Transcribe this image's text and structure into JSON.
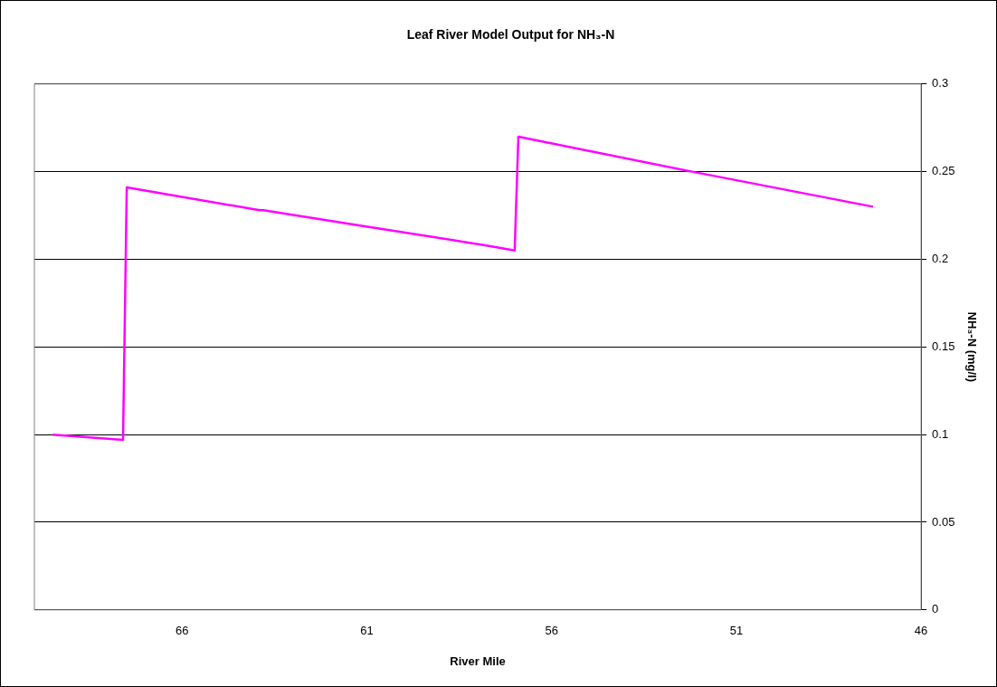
{
  "chart_data": {
    "type": "line",
    "title": "Leaf River Model Output for NH₃-N",
    "xlabel": "River Mile",
    "ylabel": "NH₃-N (mg/l)",
    "xlim": [
      70,
      46
    ],
    "xticks": [
      66,
      61,
      56,
      51,
      46
    ],
    "ylim": [
      0,
      0.3
    ],
    "yticks": [
      0,
      0.05,
      0.1,
      0.15,
      0.2,
      0.25,
      0.3
    ],
    "grid": "y",
    "legend": false,
    "marker": "none",
    "line_style": "solid",
    "series": [
      {
        "color": "#ff00ff",
        "x": [
          69.5,
          67.6,
          67.5,
          63.9,
          63.8,
          61.1,
          57.8,
          57.0,
          56.9,
          52.2,
          47.3
        ],
        "values": [
          0.1,
          0.097,
          0.241,
          0.228,
          0.228,
          0.219,
          0.208,
          0.205,
          0.27,
          0.25,
          0.23
        ]
      }
    ]
  }
}
